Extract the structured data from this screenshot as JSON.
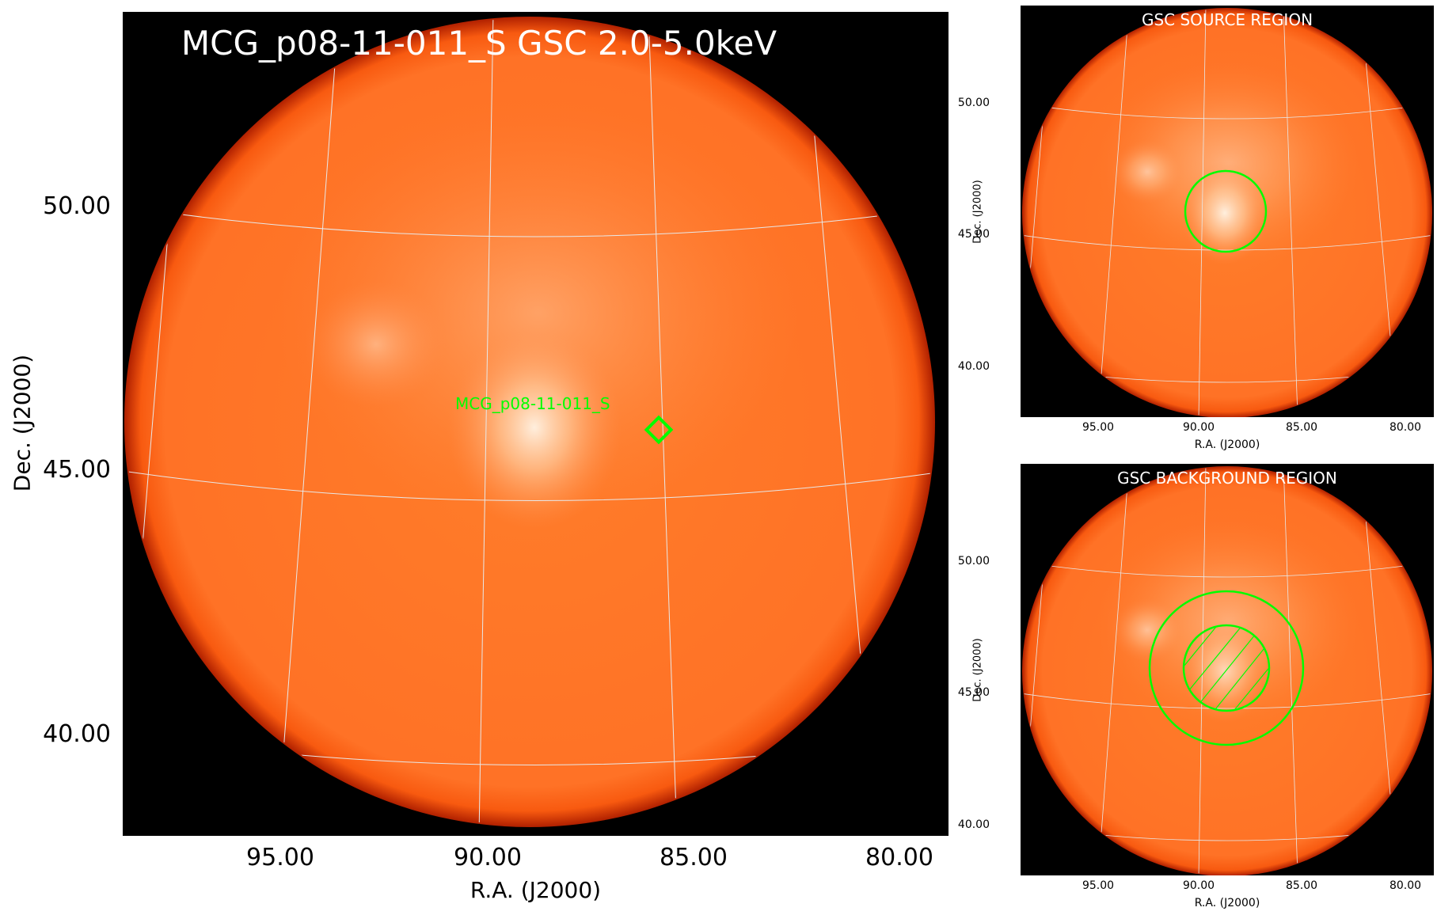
{
  "main": {
    "title": "MCG_p08-11-011_S GSC 2.0-5.0keV",
    "xlabel": "R.A. (J2000)",
    "ylabel": "Dec. (J2000)",
    "xticks": [
      "95.00",
      "90.00",
      "85.00",
      "80.00"
    ],
    "yticks": [
      "50.00",
      "45.00",
      "40.00"
    ],
    "source_label": "MCG_p08-11-011_S"
  },
  "source_panel": {
    "title": "GSC SOURCE REGION",
    "xlabel": "R.A. (J2000)",
    "ylabel": "Dec. (J2000)",
    "xticks": [
      "95.00",
      "90.00",
      "85.00",
      "80.00"
    ],
    "yticks": [
      "50.00",
      "45.00",
      "40.00"
    ]
  },
  "background_panel": {
    "title": "GSC BACKGROUND REGION",
    "xlabel": "R.A. (J2000)",
    "ylabel": "Dec. (J2000)",
    "xticks": [
      "95.00",
      "90.00",
      "85.00",
      "80.00"
    ],
    "yticks": [
      "50.00",
      "45.00",
      "40.00"
    ]
  },
  "colors": {
    "background": "#000000",
    "sky_orange": "#ff6a10",
    "region_green": "#00ff00",
    "grid": "#e8e8e8"
  }
}
